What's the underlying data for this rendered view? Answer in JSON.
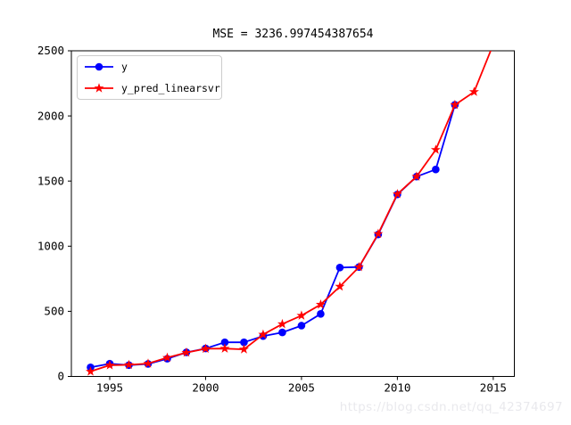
{
  "figure": {
    "watermark": "https://blog.csdn.net/qq_42374697"
  },
  "chart_data": {
    "type": "line",
    "title": "MSE = 3236.997454387654",
    "xlabel": "",
    "ylabel": "",
    "xlim": [
      1993.0,
      2016.1
    ],
    "ylim": [
      0,
      2500
    ],
    "xticks": [
      1995,
      2000,
      2005,
      2010,
      2015
    ],
    "yticks": [
      0,
      500,
      1000,
      1500,
      2000,
      2500
    ],
    "grid": false,
    "legend_position": "upper left",
    "series": [
      {
        "name": "y",
        "color": "#0000ff",
        "marker": "circle",
        "x": [
          1994,
          1995,
          1996,
          1997,
          1998,
          1999,
          2000,
          2001,
          2002,
          2003,
          2004,
          2005,
          2006,
          2007,
          2008,
          2009,
          2010,
          2011,
          2012,
          2013
        ],
        "values": [
          70,
          98,
          87,
          96,
          136,
          185,
          215,
          262,
          262,
          310,
          338,
          390,
          480,
          836,
          840,
          1090,
          1397,
          1534,
          1589,
          2085
        ]
      },
      {
        "name": "y_pred_linearsvr",
        "color": "#ff0000",
        "marker": "star",
        "x": [
          1994,
          1995,
          1996,
          1997,
          1998,
          1999,
          2000,
          2001,
          2002,
          2003,
          2004,
          2005,
          2006,
          2007,
          2008,
          2009,
          2010,
          2011,
          2012,
          2013,
          2014,
          2015
        ],
        "values": [
          38,
          86,
          89,
          99,
          144,
          183,
          213,
          214,
          208,
          322,
          402,
          467,
          552,
          690,
          840,
          1095,
          1400,
          1534,
          1740,
          2085,
          2185,
          2550
        ]
      }
    ]
  }
}
